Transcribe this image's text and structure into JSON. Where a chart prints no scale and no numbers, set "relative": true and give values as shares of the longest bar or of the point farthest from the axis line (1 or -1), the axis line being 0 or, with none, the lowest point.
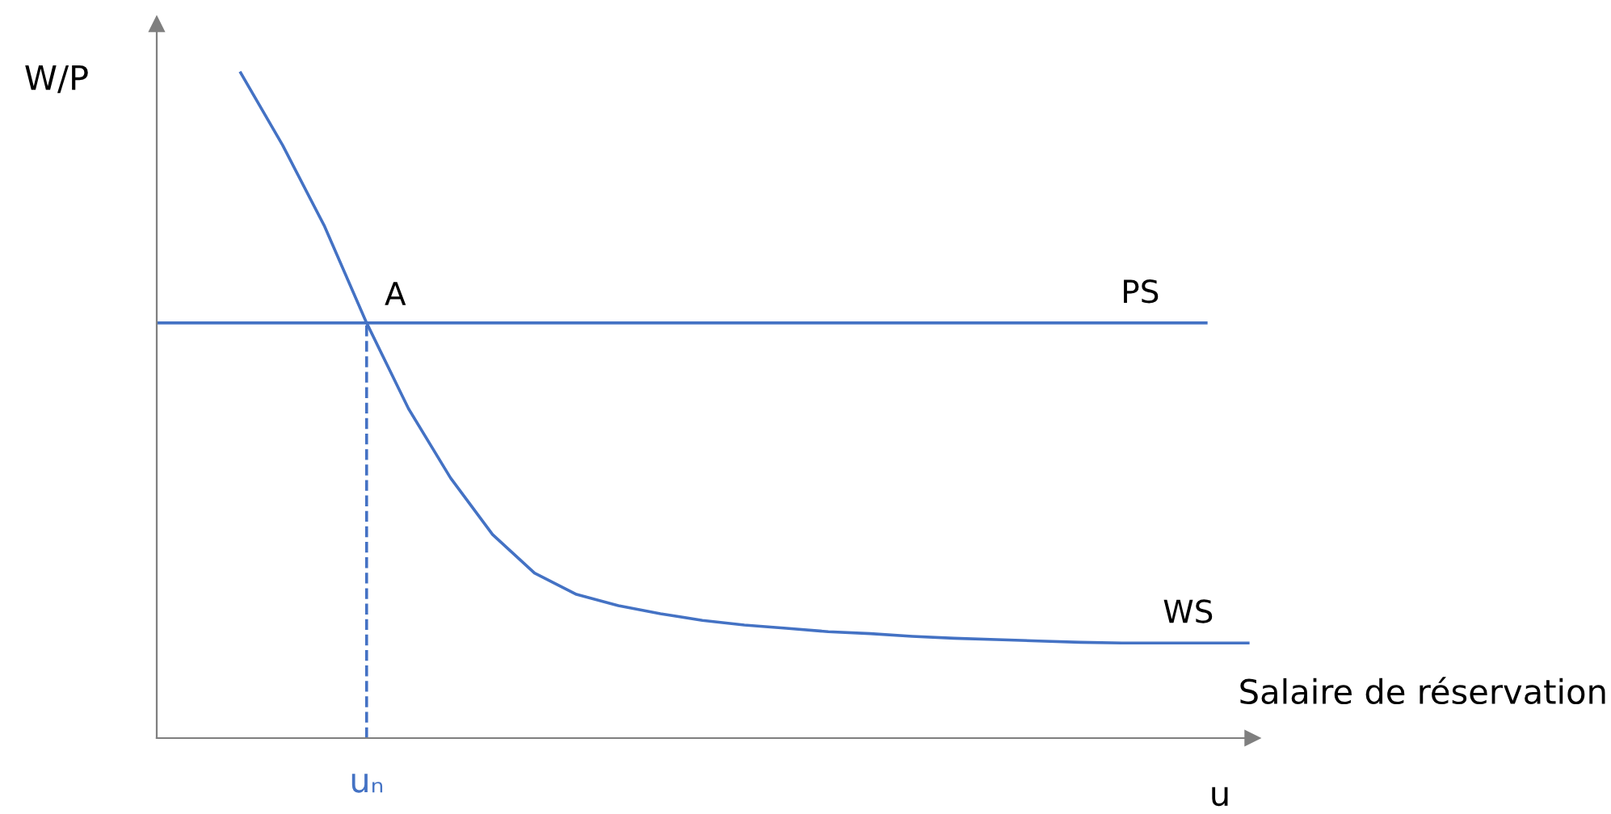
{
  "chart_data": {
    "type": "line",
    "relative": true,
    "xlabel": "u",
    "ylabel": "W/P",
    "categories": [
      null,
      null,
      null,
      null,
      null,
      null,
      null,
      null,
      null,
      null,
      null,
      null,
      null,
      null,
      null,
      null,
      null,
      null,
      null,
      null,
      null,
      null,
      null,
      null,
      null,
      null,
      null
    ],
    "series": [
      {
        "name": "WS",
        "color": "#4472c4",
        "values": [
          null,
          null,
          1,
          0.891,
          0.769,
          0.624,
          0.495,
          0.391,
          0.306,
          0.248,
          0.216,
          0.199,
          0.187,
          0.177,
          0.17,
          0.165,
          0.16,
          0.157,
          0.153,
          0.15,
          0.148,
          0.146,
          0.144,
          0.143,
          0.143,
          0.143,
          0.143
        ]
      },
      {
        "name": "PS",
        "color": "#4472c4",
        "values": [
          0.624,
          0.624,
          0.624,
          0.624,
          0.624,
          0.624,
          0.624,
          0.624,
          0.624,
          0.624,
          0.624,
          0.624,
          0.624,
          0.624,
          0.624,
          0.624,
          0.624,
          0.624,
          0.624,
          0.624,
          0.624,
          0.624,
          0.624,
          0.624,
          0.624,
          0.624,
          null
        ]
      }
    ],
    "annotations": [
      {
        "text": "A",
        "y": 0.624
      },
      "Salaire de réservation",
      "uₙ"
    ],
    "legend": false
  }
}
